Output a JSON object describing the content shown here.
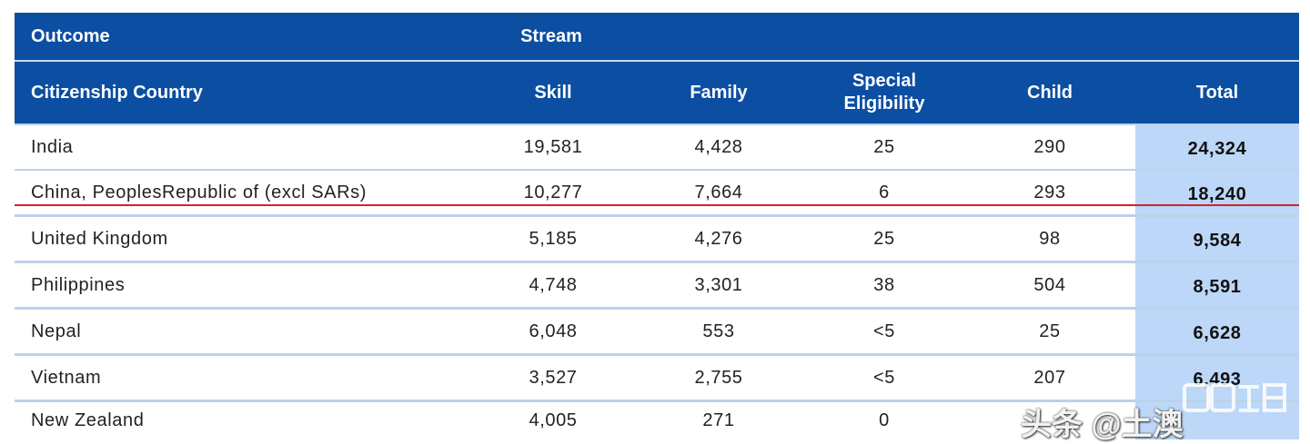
{
  "header": {
    "outcome": "Outcome",
    "stream": "Stream",
    "columns": [
      "Citizenship Country",
      "Skill",
      "Family",
      "Special Eligibility",
      "Child",
      "Total"
    ]
  },
  "rows": [
    {
      "country": "India",
      "skill": "19,581",
      "family": "4,428",
      "special": "25",
      "child": "290",
      "total": "24,324"
    },
    {
      "country": "China, PeoplesRepublic of (excl SARs)",
      "skill": "10,277",
      "family": "7,664",
      "special": "6",
      "child": "293",
      "total": "18,240"
    },
    {
      "country": "United Kingdom",
      "skill": "5,185",
      "family": "4,276",
      "special": "25",
      "child": "98",
      "total": "9,584"
    },
    {
      "country": "Philippines",
      "skill": "4,748",
      "family": "3,301",
      "special": "38",
      "child": "504",
      "total": "8,591"
    },
    {
      "country": "Nepal",
      "skill": "6,048",
      "family": "553",
      "special": "<5",
      "child": "25",
      "total": "6,628"
    },
    {
      "country": "Vietnam",
      "skill": "3,527",
      "family": "2,755",
      "special": "<5",
      "child": "207",
      "total": "6,493"
    },
    {
      "country": "New Zealand",
      "skill": "4,005",
      "family": "271",
      "special": "0",
      "child": "",
      "total": ""
    }
  ],
  "watermark": "头条 @土澳",
  "colors": {
    "header_bg": "#0b4ea2",
    "total_col_bg": "#bcd7f7",
    "highlight_line": "#d3222a"
  }
}
